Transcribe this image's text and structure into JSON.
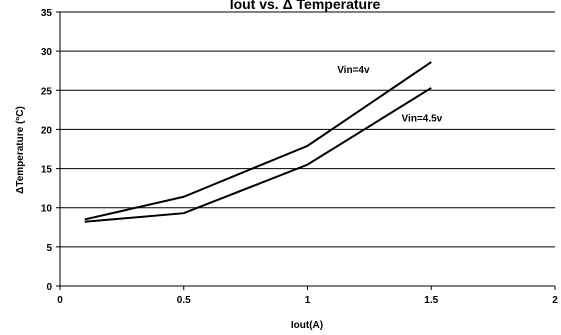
{
  "chart_data": {
    "type": "line",
    "title": "Iout vs. Δ Temperature",
    "xlabel": "Iout(A)",
    "ylabel": "ΔTemperature (°C)",
    "xlim": [
      0,
      2
    ],
    "ylim": [
      0,
      35
    ],
    "xticks": [
      "0",
      "0.5",
      "1",
      "1.5",
      "2"
    ],
    "yticks": [
      "0",
      "5",
      "10",
      "15",
      "20",
      "25",
      "30",
      "35"
    ],
    "grid": "horizontal",
    "series": [
      {
        "name": "Vin=4v",
        "x": [
          0.1,
          0.5,
          1.0,
          1.5
        ],
        "y": [
          8.5,
          11.4,
          17.9,
          28.6
        ]
      },
      {
        "name": "Vin=4.5v",
        "x": [
          0.1,
          0.5,
          1.0,
          1.5
        ],
        "y": [
          8.2,
          9.3,
          15.5,
          25.3
        ]
      }
    ],
    "line_color": "#000000"
  }
}
